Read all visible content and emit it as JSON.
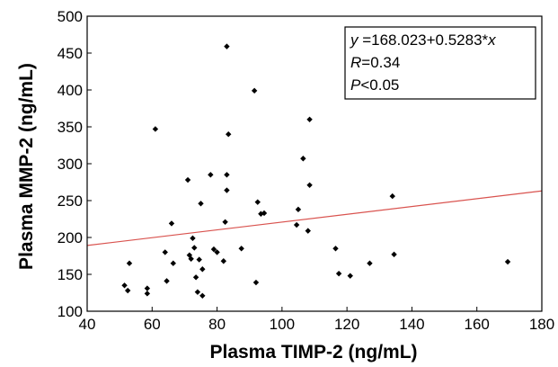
{
  "chart_data": {
    "type": "scatter",
    "xlabel": "Plasma TIMP-2 (ng/mL)",
    "ylabel": "Plasma MMP-2 (ng/mL)",
    "xlim": [
      40,
      180
    ],
    "ylim": [
      100,
      500
    ],
    "xticks": [
      "40",
      "60",
      "80",
      "100",
      "120",
      "140",
      "160",
      "180"
    ],
    "yticks": [
      "100",
      "150",
      "200",
      "250",
      "300",
      "350",
      "400",
      "450",
      "500"
    ],
    "grid": false,
    "marker_color": "#000000",
    "fit_line_color": "#d9534f",
    "fit_line": {
      "intercept": 168.023,
      "slope": 0.5283
    },
    "annotation": {
      "eq_var_y": "y",
      "eq_rest": " =168.023+0.5283*",
      "eq_var_x": "x",
      "r_var": "R",
      "r_rest": "=0.34",
      "p_var": "P",
      "p_rest": "<0.05"
    },
    "x": [
      51.5,
      52.5,
      53,
      58.5,
      58.5,
      61,
      64,
      64.5,
      66,
      66.5,
      71,
      71.5,
      72,
      72.5,
      73,
      73.5,
      74,
      74.5,
      75,
      75.5,
      75.5,
      78,
      79,
      80,
      82,
      82.5,
      83,
      83,
      83,
      83.5,
      87.5,
      91.5,
      92,
      92.5,
      93.5,
      94.5,
      104.5,
      105,
      106.5,
      108,
      108.5,
      108.5,
      116.5,
      117.5,
      121,
      127,
      134,
      134.5,
      169.5
    ],
    "y": [
      135,
      128,
      165,
      131,
      124,
      347,
      180,
      141,
      219,
      165,
      278,
      176,
      171,
      199,
      186,
      146,
      126,
      170,
      246,
      157,
      121,
      285,
      184,
      180,
      168,
      221,
      264,
      459,
      285,
      340,
      185,
      399,
      139,
      248,
      232,
      233,
      217,
      238,
      307,
      209,
      271,
      360,
      185,
      151,
      148,
      165,
      256,
      177,
      167
    ]
  }
}
